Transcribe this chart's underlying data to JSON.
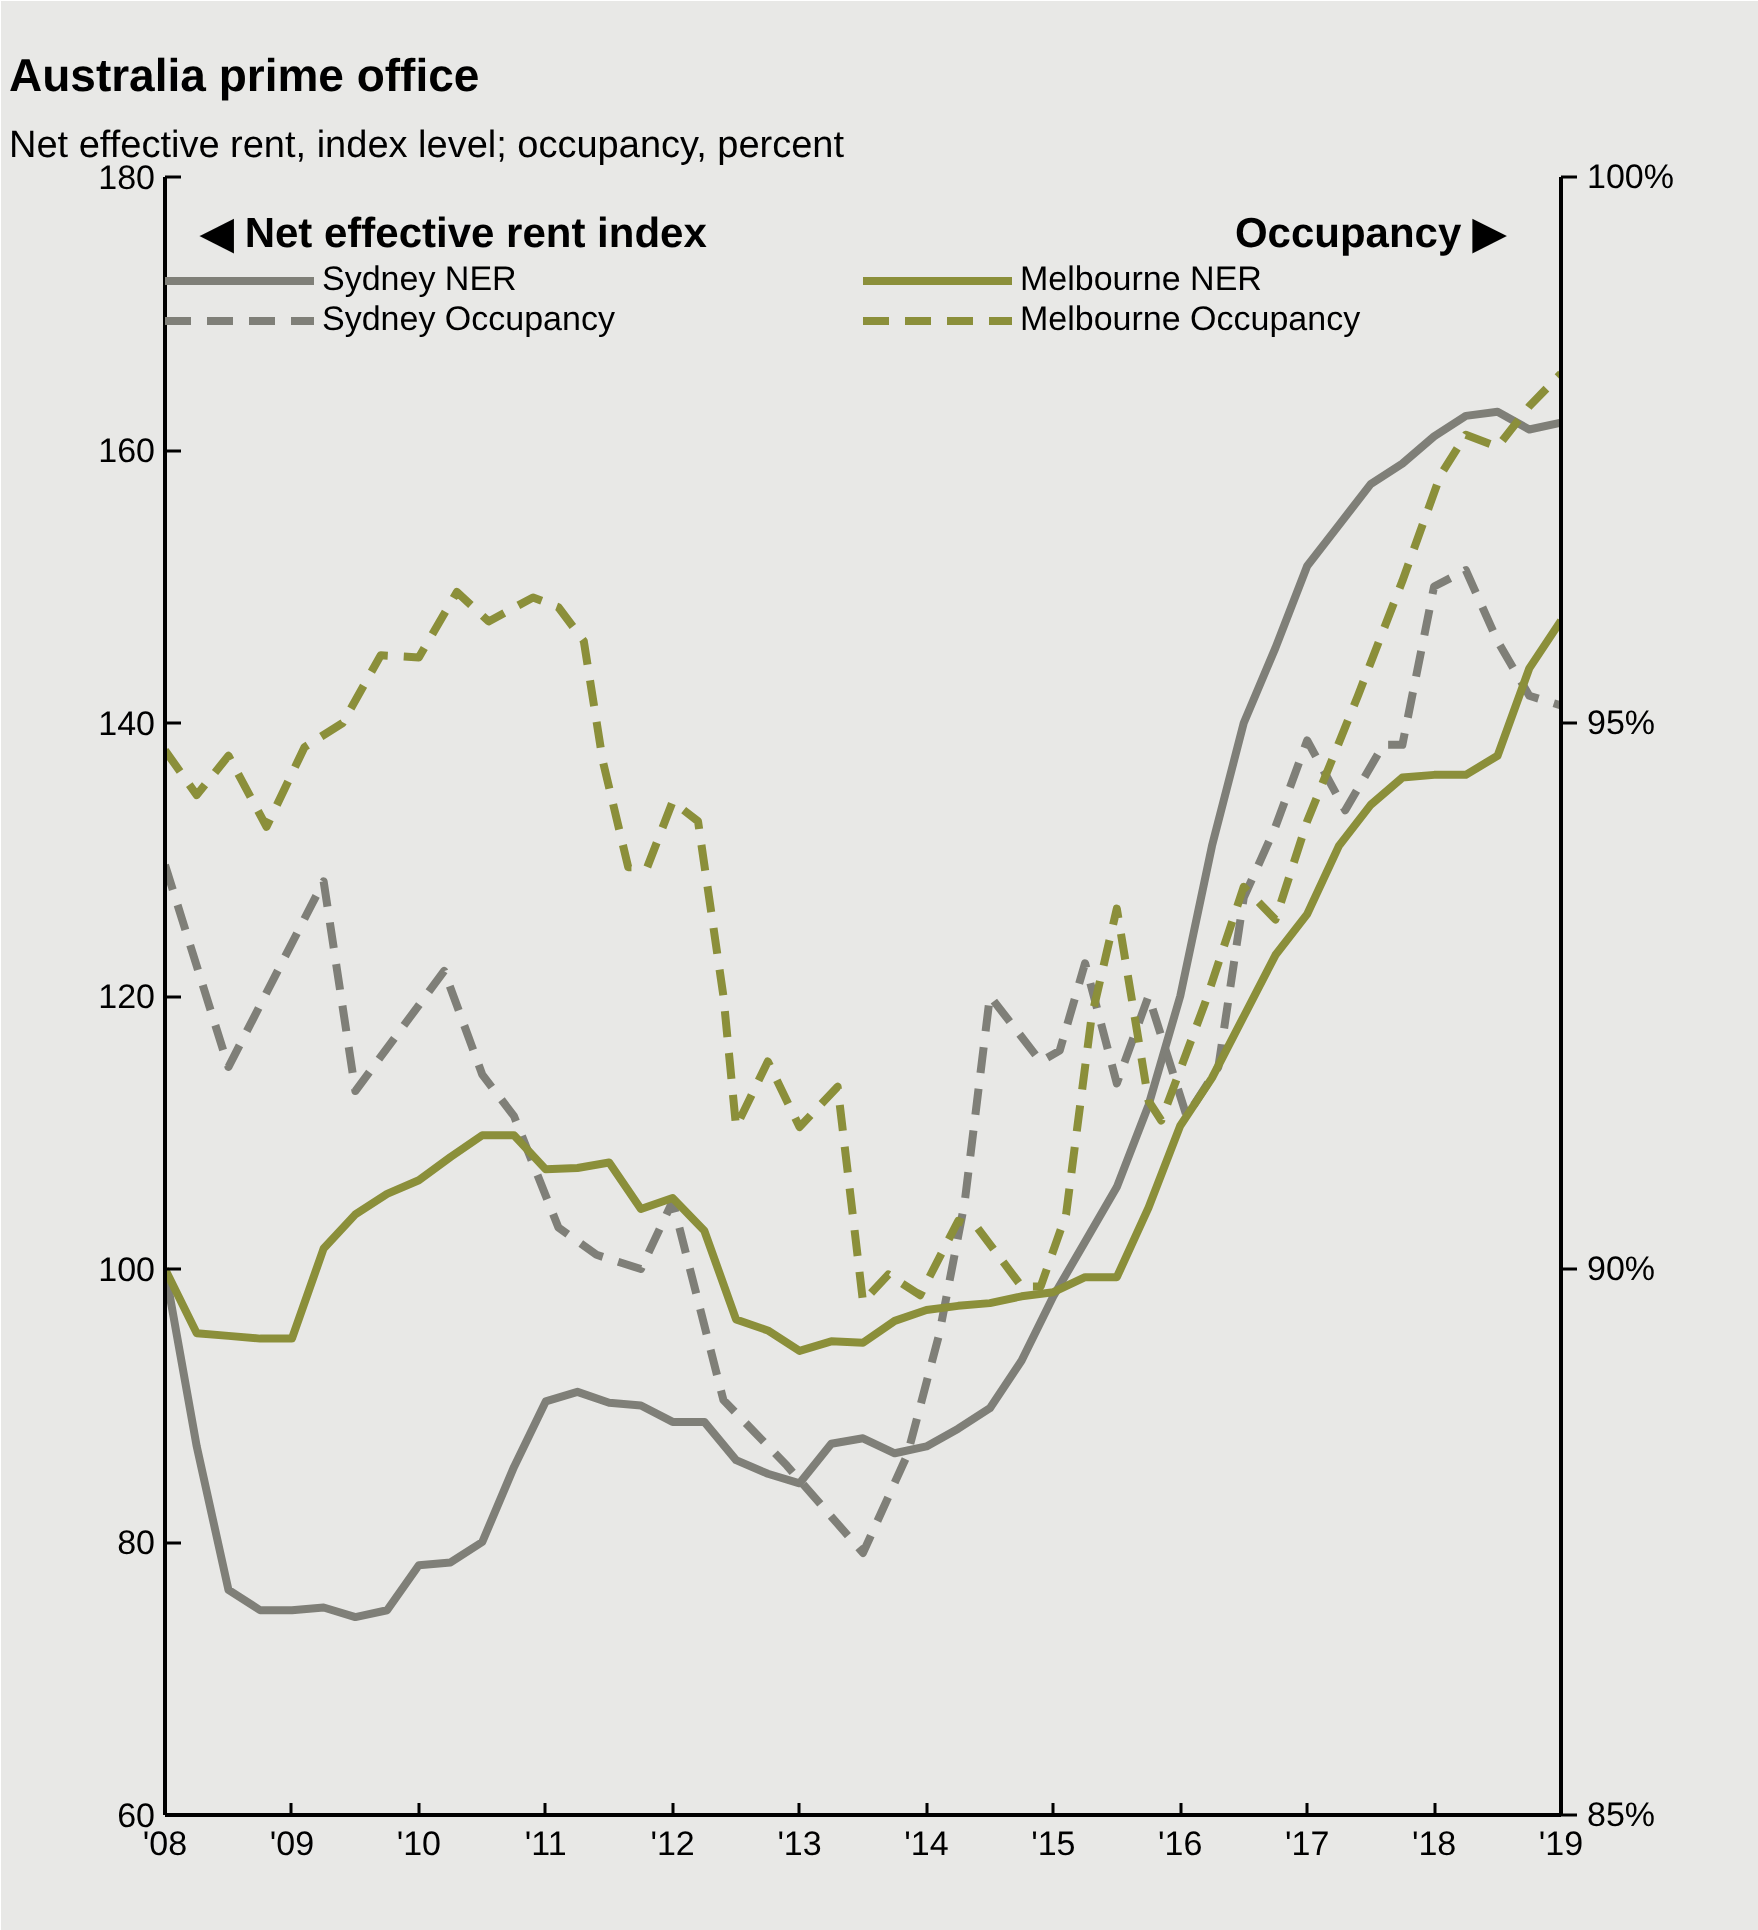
{
  "chart_data": {
    "type": "line",
    "title": "Australia prime office",
    "subtitle": "Net effective rent, index level; occupancy, percent",
    "ylabel": "◀ Net effective rent index",
    "y2label": "Occupancy ▶",
    "xlim": [
      2008,
      2019
    ],
    "xticks": [
      {
        "value": 2008,
        "label": "'08"
      },
      {
        "value": 2009,
        "label": "'09"
      },
      {
        "value": 2010,
        "label": "'10"
      },
      {
        "value": 2011,
        "label": "'11"
      },
      {
        "value": 2012,
        "label": "'12"
      },
      {
        "value": 2013,
        "label": "'13"
      },
      {
        "value": 2014,
        "label": "'14"
      },
      {
        "value": 2015,
        "label": "'15"
      },
      {
        "value": 2016,
        "label": "'16"
      },
      {
        "value": 2017,
        "label": "'17"
      },
      {
        "value": 2018,
        "label": "'18"
      },
      {
        "value": 2019,
        "label": "'19"
      }
    ],
    "ylim": [
      60,
      180
    ],
    "yticks": [
      60,
      80,
      100,
      120,
      140,
      160,
      180
    ],
    "y2lim": [
      85,
      100
    ],
    "y2ticks": [
      {
        "value": 85,
        "label": "85%"
      },
      {
        "value": 90,
        "label": "90%"
      },
      {
        "value": 95,
        "label": "95%"
      },
      {
        "value": 100,
        "label": "100%"
      }
    ],
    "legend": "top",
    "marker": "none",
    "series": [
      {
        "name": "Sydney NER",
        "color": "#7f7f78",
        "line_style": "solid",
        "x": [
          2008,
          2008.25,
          2008.5,
          2008.75,
          2009,
          2009.25,
          2009.5,
          2009.75,
          2010,
          2010.25,
          2010.5,
          2010.75,
          2011,
          2011.25,
          2011.5,
          2011.75,
          2012,
          2012.25,
          2012.5,
          2012.75,
          2013,
          2013.25,
          2013.5,
          2013.75,
          2014,
          2014.25,
          2014.5,
          2014.75,
          2015,
          2015.25,
          2015.5,
          2015.75,
          2016,
          2016.25,
          2016.5,
          2016.75,
          2017,
          2017.25,
          2017.5,
          2017.75,
          2018,
          2018.25,
          2018.5,
          2018.75,
          2019
        ],
        "values": [
          100,
          87,
          76.5,
          75,
          75,
          75.2,
          74.5,
          75,
          78.3,
          78.5,
          80,
          85.5,
          90.3,
          91,
          90.2,
          90,
          88.8,
          88.8,
          86,
          85,
          84.3,
          87.2,
          87.6,
          86.5,
          87,
          88.3,
          89.8,
          93.3,
          98,
          102,
          106,
          112,
          120,
          131,
          140,
          145.5,
          151.5,
          154.5,
          157.5,
          159,
          161,
          162.5,
          162.8,
          161.5,
          162
        ]
      },
      {
        "name": "Sydney Occupancy",
        "color": "#7f7f78",
        "line_style": "dashed",
        "axis": "y2",
        "x": [
          2008,
          2008.5,
          2009.25,
          2009.5,
          2010.2,
          2010.5,
          2010.75,
          2011.1,
          2011.4,
          2011.75,
          2012,
          2012.4,
          2012.9,
          2013.2,
          2013.5,
          2013.85,
          2014.1,
          2014.3,
          2014.5,
          2014.9,
          2015.05,
          2015.25,
          2015.5,
          2015.75,
          2016.05,
          2016.3,
          2016.5,
          2016.75,
          2017,
          2017.3,
          2017.6,
          2017.75,
          2018,
          2018.25,
          2018.5,
          2018.75,
          2019
        ],
        "values": [
          93.7,
          91.85,
          93.55,
          91.63,
          92.73,
          91.78,
          91.4,
          90.38,
          90.13,
          90,
          90.62,
          88.8,
          88.2,
          87.8,
          87.4,
          88.3,
          89.4,
          90.6,
          92.5,
          91.9,
          92,
          92.8,
          91.7,
          92.5,
          91.4,
          91.85,
          93.4,
          94.05,
          94.84,
          94.2,
          94.8,
          94.8,
          96.25,
          96.4,
          95.75,
          95.25,
          95.16
        ]
      },
      {
        "name": "Melbourne NER",
        "color": "#8b8f3a",
        "line_style": "solid",
        "x": [
          2008,
          2008.25,
          2008.5,
          2008.75,
          2009,
          2009.25,
          2009.5,
          2009.75,
          2010,
          2010.25,
          2010.5,
          2010.75,
          2011,
          2011.25,
          2011.5,
          2011.75,
          2012,
          2012.25,
          2012.5,
          2012.75,
          2013,
          2013.25,
          2013.5,
          2013.75,
          2014,
          2014.25,
          2014.5,
          2014.75,
          2015,
          2015.25,
          2015.5,
          2015.75,
          2016,
          2016.25,
          2016.5,
          2016.75,
          2017,
          2017.25,
          2017.5,
          2017.75,
          2018,
          2018.25,
          2018.5,
          2018.75,
          2019
        ],
        "values": [
          100,
          95.3,
          95.1,
          94.9,
          94.9,
          101.5,
          104,
          105.5,
          106.5,
          108.2,
          109.8,
          109.8,
          107.3,
          107.4,
          107.8,
          104.4,
          105.2,
          102.8,
          96.3,
          95.5,
          94,
          94.7,
          94.6,
          96.2,
          97,
          97.3,
          97.5,
          98,
          98.3,
          99.4,
          99.4,
          104.5,
          110.5,
          114,
          118.5,
          123,
          126,
          131,
          134,
          136,
          136.2,
          136.2,
          137.6,
          144,
          147.5
        ]
      },
      {
        "name": "Melbourne Occupancy",
        "color": "#8b8f3a",
        "line_style": "dashed",
        "axis": "y2",
        "x": [
          2008,
          2008.25,
          2008.5,
          2008.8,
          2009.1,
          2009.4,
          2009.7,
          2010,
          2010.3,
          2010.55,
          2010.9,
          2011.1,
          2011.3,
          2011.45,
          2011.65,
          2011.8,
          2012,
          2012.2,
          2012.4,
          2012.5,
          2012.75,
          2013,
          2013.3,
          2013.5,
          2013.7,
          2013.95,
          2014.25,
          2014.4,
          2014.75,
          2014.9,
          2015.1,
          2015.3,
          2015.5,
          2015.75,
          2015.85,
          2016.2,
          2016.5,
          2016.75,
          2017,
          2017.4,
          2017.75,
          2018.05,
          2018.25,
          2018.5,
          2018.75,
          2019
        ],
        "values": [
          94.75,
          94.34,
          94.7,
          94.05,
          94.78,
          95,
          95.62,
          95.6,
          96.2,
          95.93,
          96.15,
          96.06,
          95.75,
          94.65,
          93.68,
          93.68,
          94.28,
          94.1,
          92.5,
          91.3,
          91.9,
          91.3,
          91.67,
          89.7,
          89.95,
          89.76,
          90.44,
          90.38,
          89.84,
          89.84,
          90.5,
          92.3,
          93.3,
          91.54,
          91.36,
          92.45,
          93.5,
          93.2,
          94.1,
          95.25,
          96.3,
          97.27,
          97.64,
          97.53,
          97.9,
          98.2
        ]
      }
    ]
  }
}
